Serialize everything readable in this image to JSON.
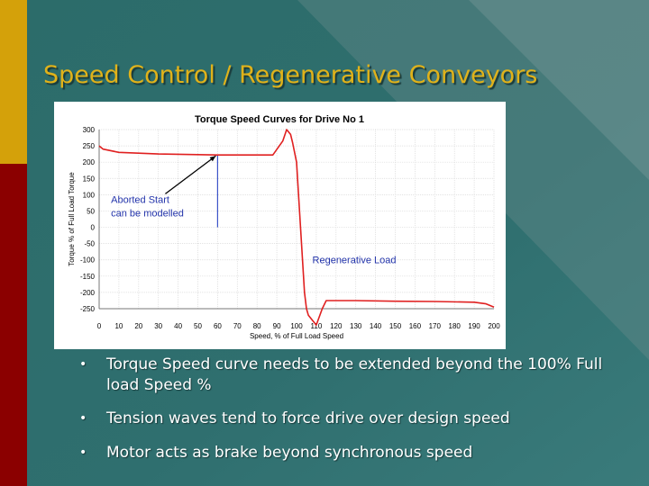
{
  "slide": {
    "title": "Speed Control / Regenerative Conveyors",
    "bullets": [
      "Torque Speed curve needs to be extended beyond the 100% Full load Speed %",
      "Tension waves tend to force drive over design speed",
      "Motor acts as brake beyond synchronous speed"
    ],
    "bullet_glyph": "•"
  },
  "colors": {
    "background_teal": "#2f6e6e",
    "gold_bar": "#d4a10a",
    "red_bar": "#8b0000",
    "title_gold": "#e0b21a",
    "series_red": "#e02020",
    "marker_blue": "#3b54c8",
    "annotation_blue": "#2233aa"
  },
  "chart_data": {
    "type": "line",
    "title": "Torque Speed Curves for Drive No 1",
    "xlabel": "Speed, % of Full Load Speed",
    "ylabel": "Torque % of Full Load Torque",
    "xlim": [
      0,
      200
    ],
    "ylim": [
      -250,
      300
    ],
    "xticks": [
      0,
      10,
      20,
      30,
      40,
      50,
      60,
      70,
      80,
      90,
      100,
      110,
      120,
      130,
      140,
      150,
      160,
      170,
      180,
      190,
      200
    ],
    "yticks": [
      300,
      250,
      200,
      150,
      100,
      50,
      0,
      -50,
      -100,
      -150,
      -200,
      -250
    ],
    "grid": true,
    "legend": "none",
    "series": [
      {
        "points": [
          [
            0,
            250
          ],
          [
            2,
            240
          ],
          [
            10,
            230
          ],
          [
            30,
            225
          ],
          [
            60,
            222
          ],
          [
            80,
            222
          ],
          [
            88,
            222
          ],
          [
            93,
            265
          ],
          [
            95,
            300
          ],
          [
            97,
            285
          ],
          [
            98,
            260
          ],
          [
            100,
            200
          ],
          [
            101,
            100
          ],
          [
            102,
            0
          ],
          [
            103,
            -100
          ],
          [
            104,
            -200
          ],
          [
            105,
            -250
          ],
          [
            106,
            -270
          ],
          [
            108,
            -285
          ],
          [
            110,
            -300
          ],
          [
            113,
            -250
          ],
          [
            115,
            -225
          ],
          [
            130,
            -225
          ],
          [
            150,
            -227
          ],
          [
            170,
            -228
          ],
          [
            190,
            -230
          ],
          [
            196,
            -235
          ],
          [
            200,
            -245
          ]
        ]
      }
    ],
    "marker_line_x": 60,
    "marker_line_y": [
      0,
      222
    ],
    "annotations": [
      {
        "text_line1": "Aborted Start",
        "text_line2": "can be modelled",
        "x": 6,
        "y": 75
      },
      {
        "text": "Regenerative Load",
        "x": 108,
        "y": -110
      }
    ]
  }
}
